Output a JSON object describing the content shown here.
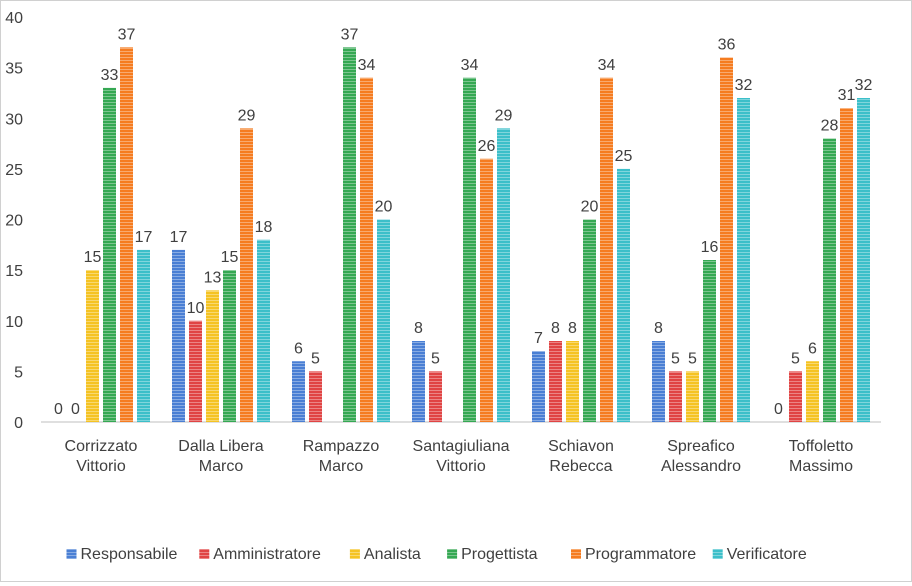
{
  "chart_data": {
    "type": "bar",
    "title": "",
    "xlabel": "",
    "ylabel": "",
    "ylim": [
      0,
      40
    ],
    "yticks": [
      0,
      5,
      10,
      15,
      20,
      25,
      30,
      35,
      40
    ],
    "grid": false,
    "legend_position": "bottom",
    "categories": [
      [
        "Corrizzato",
        "Vittorio"
      ],
      [
        "Dalla Libera",
        "Marco"
      ],
      [
        "Rampazzo",
        "Marco"
      ],
      [
        "Santagiuliana",
        "Vittorio"
      ],
      [
        "Schiavon",
        "Rebecca"
      ],
      [
        "Spreafico",
        "Alessandro"
      ],
      [
        "Toffoletto",
        "Massimo"
      ]
    ],
    "series": [
      {
        "name": "Responsabile",
        "color": "#4a7fd4",
        "values": [
          0,
          17,
          6,
          8,
          7,
          8,
          0
        ]
      },
      {
        "name": "Amministratore",
        "color": "#e04444",
        "values": [
          0,
          10,
          5,
          5,
          8,
          5,
          5
        ]
      },
      {
        "name": "Analista",
        "color": "#f5c323",
        "values": [
          15,
          13,
          null,
          null,
          8,
          5,
          6
        ]
      },
      {
        "name": "Progettista",
        "color": "#35a853",
        "values": [
          33,
          15,
          37,
          34,
          20,
          16,
          28
        ]
      },
      {
        "name": "Programmatore",
        "color": "#f57c20",
        "values": [
          37,
          29,
          34,
          26,
          34,
          36,
          31
        ]
      },
      {
        "name": "Verificatore",
        "color": "#3cbfc9",
        "values": [
          17,
          18,
          20,
          29,
          25,
          32,
          32
        ]
      }
    ]
  }
}
